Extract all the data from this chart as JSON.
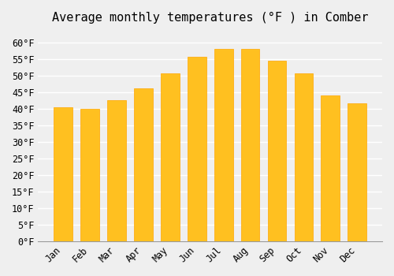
{
  "title": "Average monthly temperatures (°F ) in Comber",
  "months": [
    "Jan",
    "Feb",
    "Mar",
    "Apr",
    "May",
    "Jun",
    "Jul",
    "Aug",
    "Sep",
    "Oct",
    "Nov",
    "Dec"
  ],
  "values": [
    40.5,
    40.0,
    42.5,
    46.0,
    50.5,
    55.5,
    58.0,
    58.0,
    54.5,
    50.5,
    44.0,
    41.5
  ],
  "bar_color_main": "#FFC020",
  "bar_color_edge": "#FFA500",
  "background_color": "#EFEFEF",
  "ylim": [
    0,
    63
  ],
  "yticks": [
    0,
    5,
    10,
    15,
    20,
    25,
    30,
    35,
    40,
    45,
    50,
    55,
    60
  ],
  "title_fontsize": 11,
  "tick_fontsize": 8.5,
  "grid_color": "#FFFFFF"
}
